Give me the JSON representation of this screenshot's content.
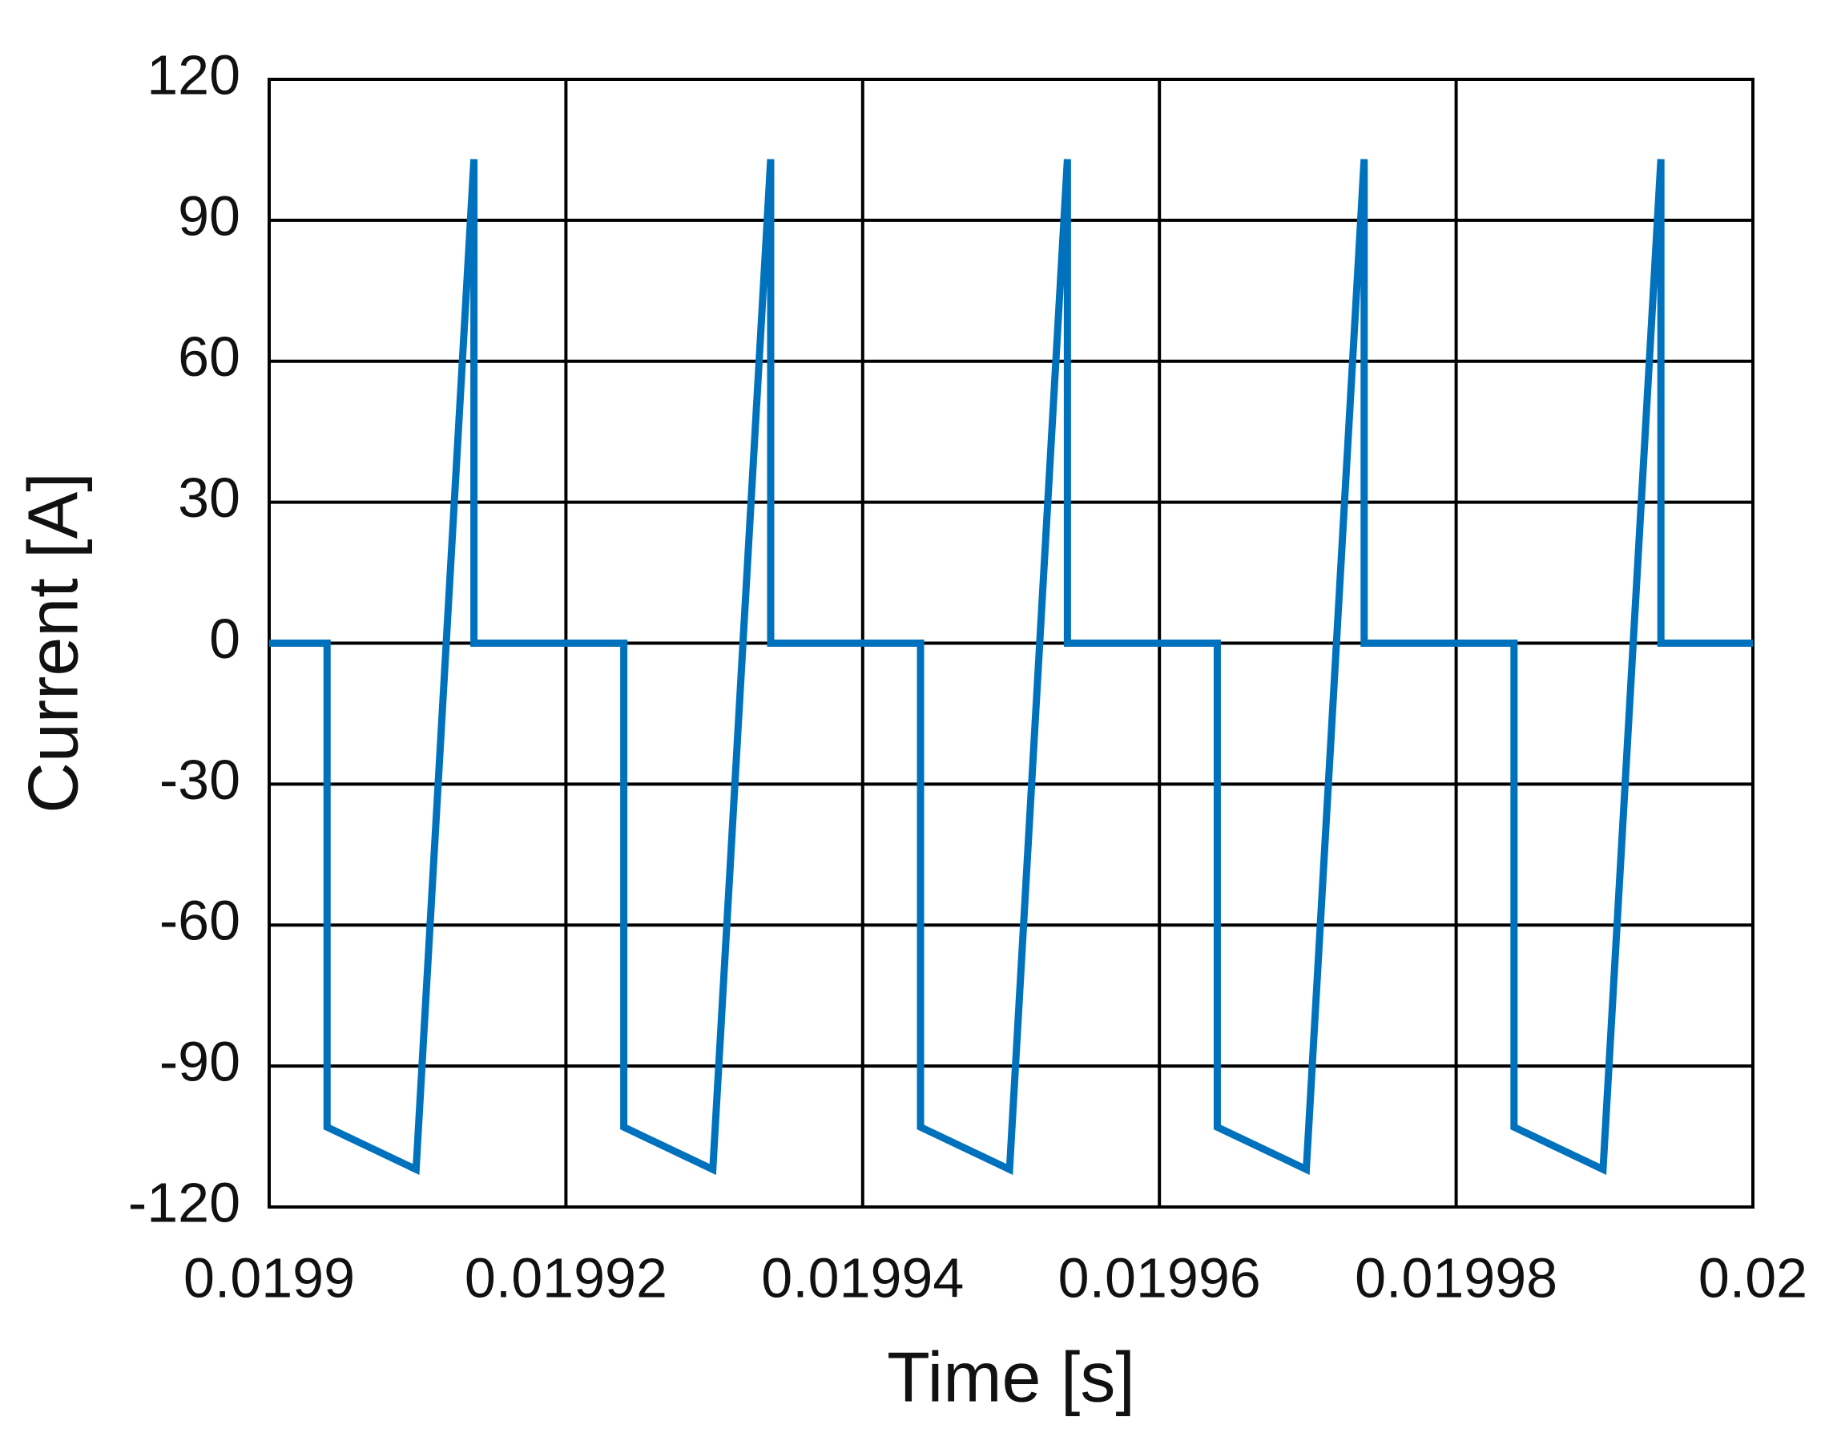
{
  "chart_data": {
    "type": "line",
    "xlabel": "Time [s]",
    "ylabel": "Current [A]",
    "x": [
      0.0199,
      0.0199039,
      0.0199039,
      0.0199099,
      0.0199138,
      0.0199138,
      0.0199239,
      0.0199239,
      0.0199299,
      0.0199338,
      0.0199338,
      0.0199439,
      0.0199439,
      0.0199499,
      0.0199538,
      0.0199538,
      0.0199639,
      0.0199639,
      0.0199699,
      0.0199738,
      0.0199738,
      0.0199839,
      0.0199839,
      0.0199899,
      0.0199938,
      0.0199938,
      0.02
    ],
    "series": [
      {
        "color": "#0072bd",
        "values": [
          0,
          0,
          -103,
          -112,
          103,
          0,
          0,
          -103,
          -112,
          103,
          0,
          0,
          -103,
          -112,
          103,
          0,
          0,
          -103,
          -112,
          103,
          0,
          0,
          -103,
          -112,
          103,
          0,
          0
        ]
      }
    ],
    "xlim": [
      0.0199,
      0.02
    ],
    "xticks": [
      0.0199,
      0.01992,
      0.01994,
      0.01996,
      0.01998,
      0.02
    ],
    "ylim": [
      -120,
      120
    ],
    "yticks": [
      -120,
      -90,
      -60,
      -30,
      0,
      30,
      60,
      90,
      120
    ],
    "grid": true
  }
}
